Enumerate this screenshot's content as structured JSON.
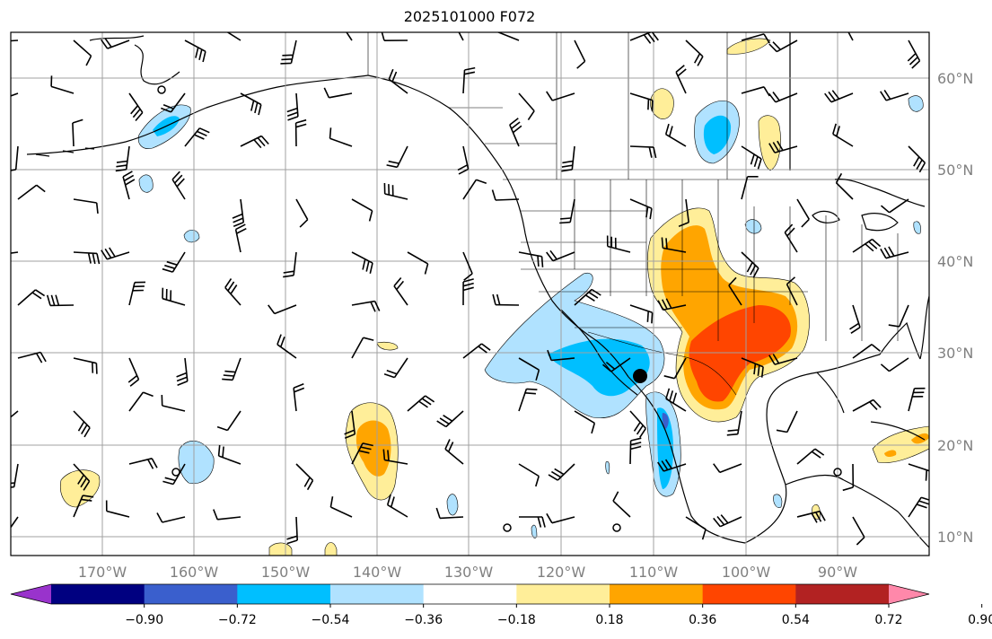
{
  "title": "2025101000 F072",
  "map": {
    "lon_labels": [
      "170°W",
      "160°W",
      "150°W",
      "140°W",
      "130°W",
      "120°W",
      "110°W",
      "100°W",
      "90°W"
    ],
    "lat_labels": [
      "60°N",
      "50°N",
      "40°N",
      "30°N",
      "20°N",
      "10°N"
    ],
    "grid_color": "#a0a0a0",
    "coast_color": "#000000",
    "storm_marker": "black-circle-marker"
  },
  "colorbar": {
    "colors": [
      "#9933cc",
      "#000080",
      "#3a5fcd",
      "#00bfff",
      "#b0e2ff",
      "#ffffff",
      "#ffee99",
      "#ffa500",
      "#ff4500",
      "#b22222",
      "#ff88aa"
    ],
    "labels": [
      "−0.90",
      "−0.72",
      "−0.54",
      "−0.36",
      "−0.18",
      "0.18",
      "0.36",
      "0.54",
      "0.72",
      "0.90"
    ]
  }
}
